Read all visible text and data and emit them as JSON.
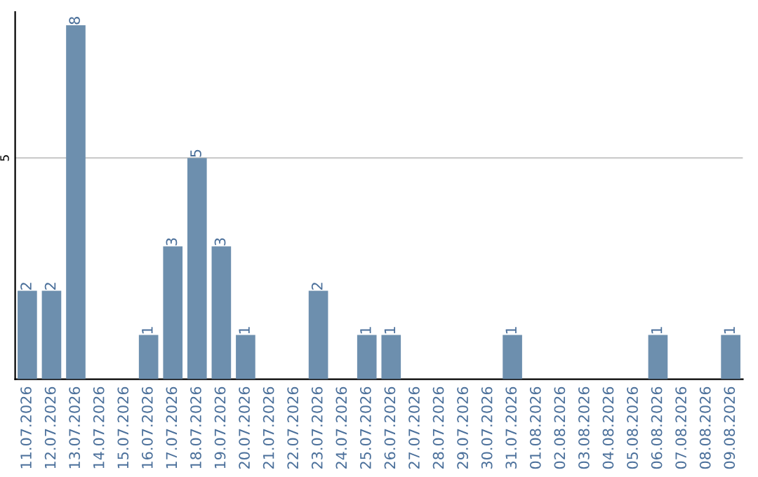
{
  "chart_data": {
    "type": "bar",
    "categories": [
      "11.07.2026",
      "12.07.2026",
      "13.07.2026",
      "14.07.2026",
      "15.07.2026",
      "16.07.2026",
      "17.07.2026",
      "18.07.2026",
      "19.07.2026",
      "20.07.2026",
      "21.07.2026",
      "22.07.2026",
      "23.07.2026",
      "24.07.2026",
      "25.07.2026",
      "26.07.2026",
      "27.07.2026",
      "28.07.2026",
      "29.07.2026",
      "30.07.2026",
      "31.07.2026",
      "01.08.2026",
      "02.08.2026",
      "03.08.2026",
      "04.08.2026",
      "05.08.2026",
      "06.08.2026",
      "07.08.2026",
      "08.08.2026",
      "09.08.2026"
    ],
    "values": [
      2,
      2,
      8,
      0,
      0,
      1,
      3,
      5,
      3,
      1,
      0,
      0,
      2,
      0,
      1,
      1,
      0,
      0,
      0,
      0,
      1,
      0,
      0,
      0,
      0,
      0,
      1,
      0,
      0,
      1
    ],
    "value_labels": [
      "2",
      "2",
      "8",
      null,
      null,
      "1",
      "3",
      "5",
      "3",
      "1",
      null,
      null,
      "2",
      null,
      "1",
      "1",
      null,
      null,
      null,
      null,
      "1",
      null,
      null,
      null,
      null,
      null,
      "1",
      null,
      null,
      "1"
    ],
    "color": "#6d8fae",
    "ylim": [
      0,
      8.3
    ],
    "yticks": [
      5
    ],
    "grid": "y"
  }
}
